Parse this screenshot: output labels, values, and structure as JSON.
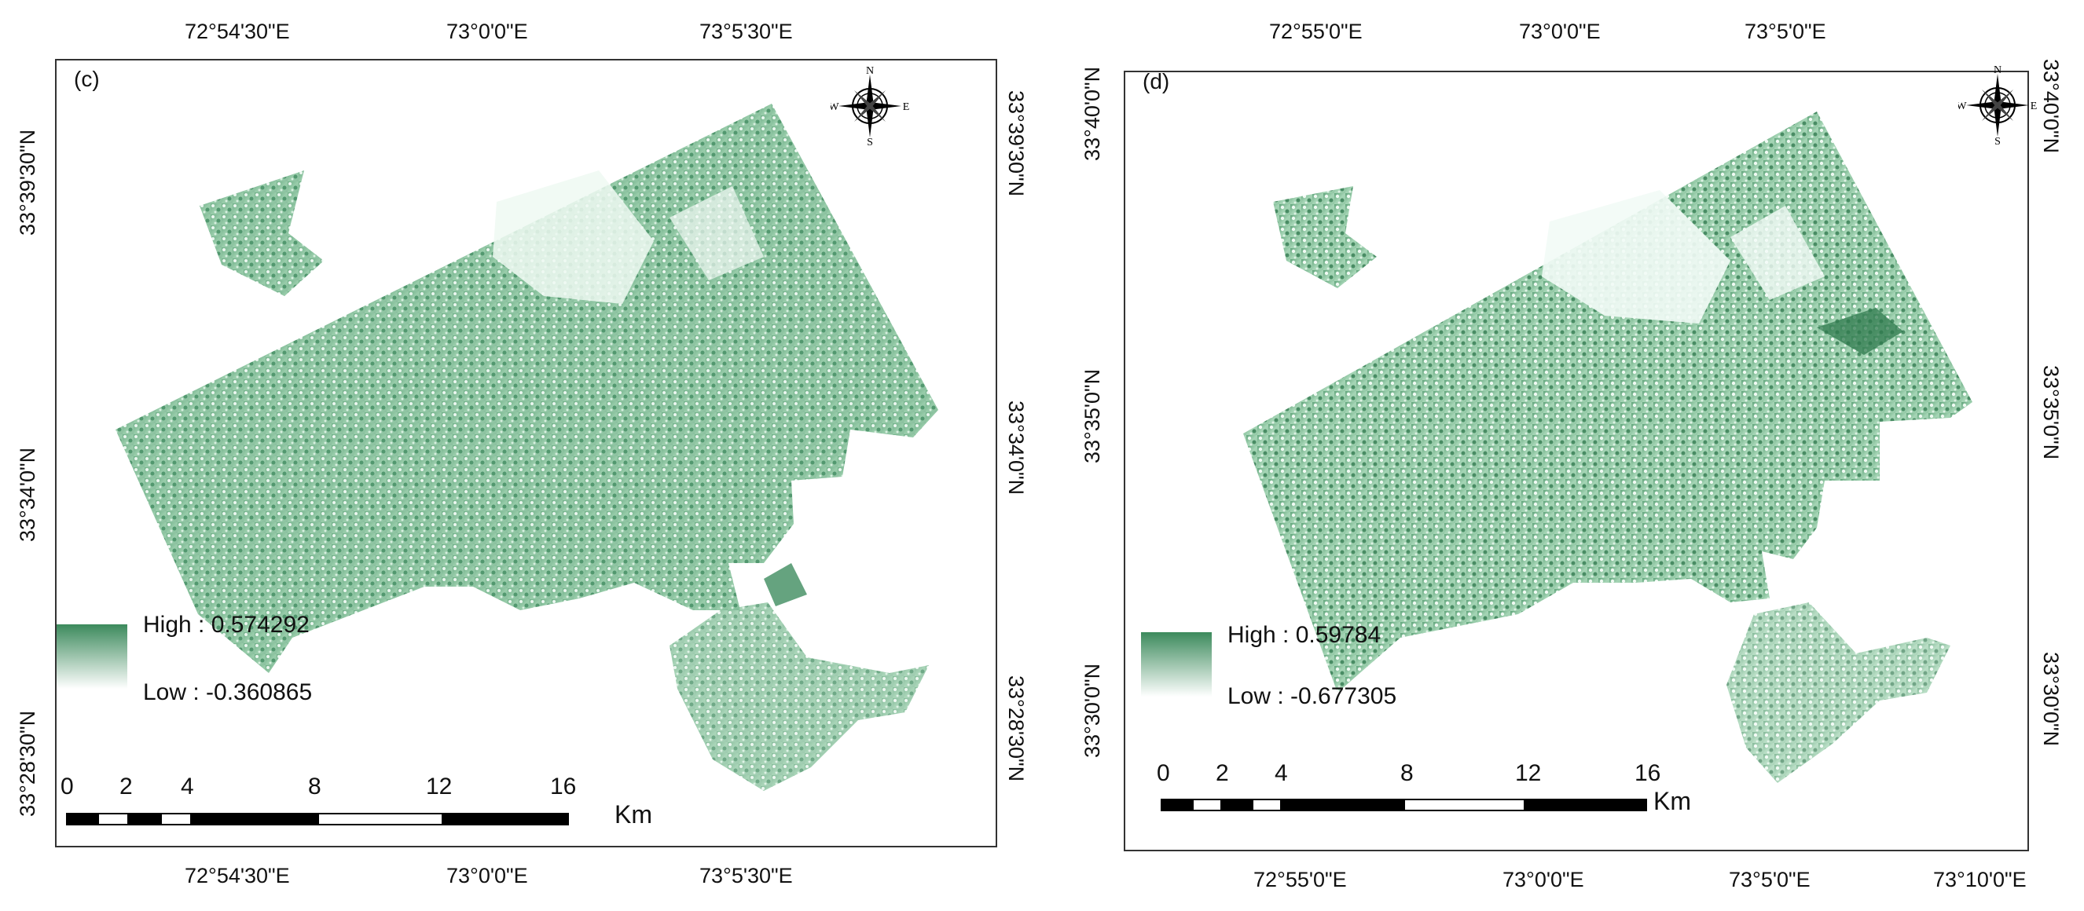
{
  "panel_c": {
    "label": "(c)",
    "top_ticks": [
      "72°54'30\"E",
      "73°0'0\"E",
      "73°5'30\"E"
    ],
    "bottom_ticks": [
      "72°54'30\"E",
      "73°0'0\"E",
      "73°5'30\"E"
    ],
    "left_ticks": [
      "33°39'30\"N",
      "33°34'0\"N",
      "33°28'30\"N"
    ],
    "right_ticks": [
      "33°39'30\"N",
      "33°34'0\"N",
      "33°28'30\"N"
    ],
    "legend_high": "High : 0.574292",
    "legend_low": "Low : -0.360865",
    "scale_numbers": [
      "0",
      "2",
      "4",
      "8",
      "12",
      "16"
    ],
    "scale_unit": "Km"
  },
  "panel_d": {
    "label": "(d)",
    "top_ticks": [
      "72°55'0\"E",
      "73°0'0\"E",
      "73°5'0\"E"
    ],
    "bottom_ticks": [
      "72°55'0\"E",
      "73°0'0\"E",
      "73°5'0\"E",
      "73°10'0\"E"
    ],
    "left_ticks": [
      "33°40'0\"N",
      "33°35'0\"N",
      "33°30'0\"N"
    ],
    "right_ticks": [
      "33°40'0\"N",
      "33°35'0\"N",
      "33°30'0\"N"
    ],
    "legend_high": "High : 0.59784",
    "legend_low": "Low : -0.677305",
    "scale_numbers": [
      "0",
      "2",
      "4",
      "8",
      "12",
      "16"
    ],
    "scale_unit": "Km"
  },
  "compass": {
    "n": "N",
    "s": "S",
    "e": "E",
    "w": "W"
  },
  "colors": {
    "high": "#3c8a5c",
    "low": "#ffffff"
  }
}
